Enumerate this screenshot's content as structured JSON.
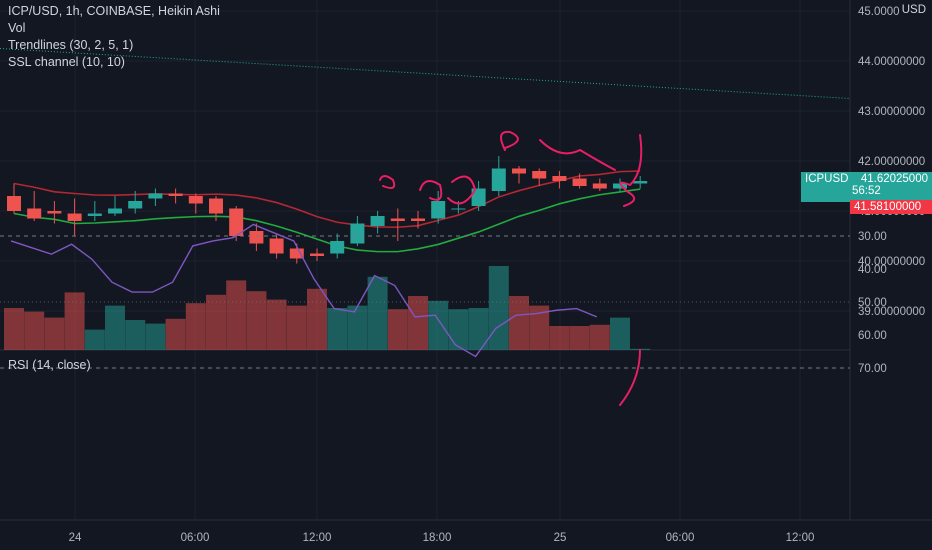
{
  "header": {
    "title": "ICP/USD, 1h, COINBASE, Heikin Ashi",
    "indicators": [
      "Vol",
      "Trendlines (30, 2, 5, 1)",
      "SSL channel (10, 10)"
    ],
    "currency": "USD"
  },
  "price_tags": {
    "symbol": "ICPUSD",
    "last": "41.62025000",
    "countdown": "56:52",
    "ssl": "41.58100000"
  },
  "rsi": {
    "label": "RSI (14, close)"
  },
  "colors": {
    "bull": "#26a69a",
    "bear": "#ef5350",
    "ssl_up": "#22ab3f",
    "ssl_down": "#b22833",
    "rsi": "#7e57c2",
    "trend": "#26a69a",
    "drawing": "#e91e63"
  },
  "chart_data": [
    {
      "type": "candlestick",
      "title": "ICP/USD, 1h, COINBASE, Heikin Ashi",
      "y_ticks": [
        "39.00000000",
        "40.00000000",
        "41.00000000",
        "42.00000000",
        "43.00000000",
        "44.00000000",
        "45.00000000"
      ],
      "x_ticks": [
        "24",
        "06:00",
        "12:00",
        "18:00",
        "25",
        "06:00",
        "12:00"
      ],
      "ylim": [
        38.0,
        45.2
      ],
      "candles": [
        {
          "o": 41.3,
          "h": 41.55,
          "c": 41.0,
          "l": 40.95
        },
        {
          "o": 41.05,
          "h": 41.4,
          "c": 40.85,
          "l": 40.8
        },
        {
          "o": 41.0,
          "h": 41.2,
          "c": 40.95,
          "l": 40.75
        },
        {
          "o": 40.95,
          "h": 41.25,
          "c": 40.8,
          "l": 40.5
        },
        {
          "o": 40.9,
          "h": 41.2,
          "c": 40.95,
          "l": 40.8
        },
        {
          "o": 40.95,
          "h": 41.3,
          "c": 41.05,
          "l": 40.9
        },
        {
          "o": 41.05,
          "h": 41.4,
          "c": 41.2,
          "l": 40.95
        },
        {
          "o": 41.25,
          "h": 41.45,
          "c": 41.35,
          "l": 41.1
        },
        {
          "o": 41.35,
          "h": 41.45,
          "c": 41.3,
          "l": 41.15
        },
        {
          "o": 41.3,
          "h": 41.35,
          "c": 41.15,
          "l": 40.95
        },
        {
          "o": 41.25,
          "h": 41.3,
          "c": 40.95,
          "l": 40.8
        },
        {
          "o": 41.05,
          "h": 41.1,
          "c": 40.5,
          "l": 40.4
        },
        {
          "o": 40.6,
          "h": 40.75,
          "c": 40.35,
          "l": 40.2
        },
        {
          "o": 40.45,
          "h": 40.55,
          "c": 40.15,
          "l": 40.05
        },
        {
          "o": 40.25,
          "h": 40.35,
          "c": 40.05,
          "l": 39.95
        },
        {
          "o": 40.15,
          "h": 40.25,
          "c": 40.1,
          "l": 40.0
        },
        {
          "o": 40.15,
          "h": 40.55,
          "c": 40.4,
          "l": 40.05
        },
        {
          "o": 40.35,
          "h": 40.9,
          "c": 40.75,
          "l": 40.3
        },
        {
          "o": 40.7,
          "h": 41.0,
          "c": 40.9,
          "l": 40.55
        },
        {
          "o": 40.85,
          "h": 41.05,
          "c": 40.8,
          "l": 40.4
        },
        {
          "o": 40.85,
          "h": 41.0,
          "c": 40.8,
          "l": 40.65
        },
        {
          "o": 40.85,
          "h": 41.4,
          "c": 41.2,
          "l": 40.75
        },
        {
          "o": 41.05,
          "h": 41.2,
          "c": 41.05,
          "l": 40.95
        },
        {
          "o": 41.1,
          "h": 41.6,
          "c": 41.45,
          "l": 41.0
        },
        {
          "o": 41.4,
          "h": 42.1,
          "c": 41.85,
          "l": 41.3
        },
        {
          "o": 41.85,
          "h": 41.9,
          "c": 41.75,
          "l": 41.55
        },
        {
          "o": 41.8,
          "h": 41.85,
          "c": 41.65,
          "l": 41.5
        },
        {
          "o": 41.7,
          "h": 41.8,
          "c": 41.6,
          "l": 41.45
        },
        {
          "o": 41.65,
          "h": 41.75,
          "c": 41.5,
          "l": 41.45
        },
        {
          "o": 41.55,
          "h": 41.65,
          "c": 41.45,
          "l": 41.4
        },
        {
          "o": 41.45,
          "h": 41.65,
          "c": 41.55,
          "l": 41.4
        },
        {
          "o": 41.55,
          "h": 41.7,
          "c": 41.6,
          "l": 41.45
        }
      ],
      "volume": [
        0.35,
        0.32,
        0.27,
        0.48,
        0.17,
        0.37,
        0.25,
        0.22,
        0.26,
        0.39,
        0.46,
        0.58,
        0.49,
        0.42,
        0.37,
        0.51,
        0.35,
        0.37,
        0.61,
        0.34,
        0.45,
        0.41,
        0.34,
        0.35,
        0.7,
        0.45,
        0.37,
        0.2,
        0.2,
        0.21,
        0.27,
        0.01
      ]
    },
    {
      "type": "line",
      "title": "RSI (14, close)",
      "y_ticks": [
        "30.00",
        "40.00",
        "50.00",
        "60.00",
        "70.00"
      ],
      "ylim": [
        25,
        75
      ],
      "bands": [
        30,
        70
      ],
      "values": [
        31.5,
        33.5,
        35.5,
        32.5,
        37,
        44,
        47,
        47,
        44,
        33,
        31.5,
        30.5,
        26.5,
        29,
        31.5,
        43,
        52,
        53,
        42,
        45,
        54.5,
        54,
        63,
        66.5,
        58,
        54,
        53.5,
        52.5,
        52,
        54.5
      ]
    }
  ]
}
